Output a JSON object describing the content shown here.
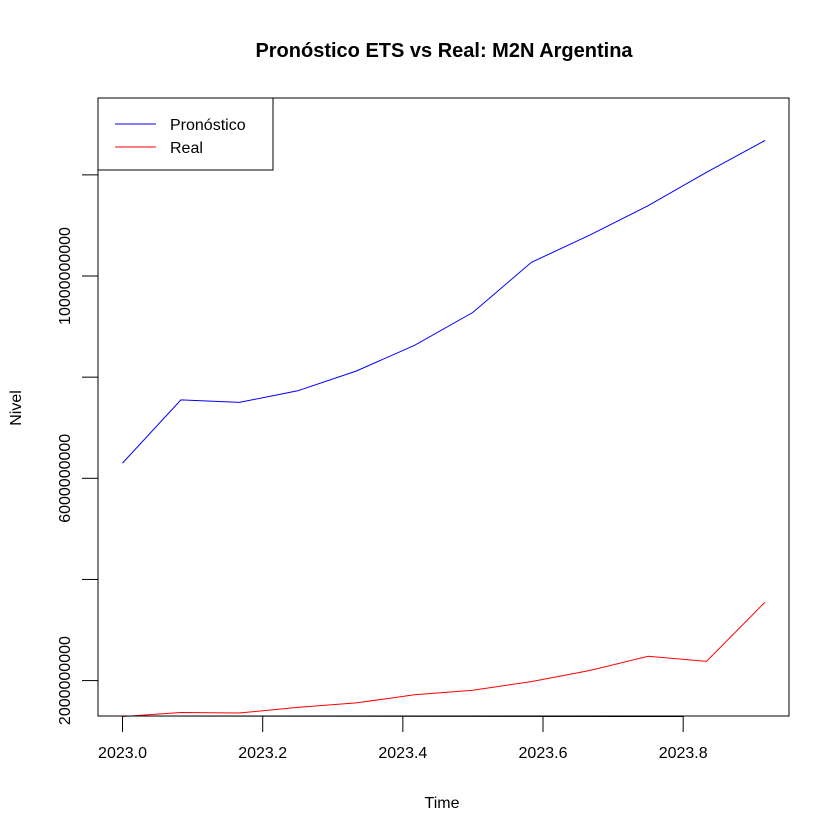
{
  "chart_data": {
    "type": "line",
    "title": "Pronóstico ETS vs Real: M2N Argentina",
    "xlabel": "Time",
    "ylabel": "Nivel",
    "xlim": [
      2022.965,
      2023.951
    ],
    "ylim": [
      1300000000,
      13520000000
    ],
    "x_ticks": [
      2023.0,
      2023.2,
      2023.4,
      2023.6,
      2023.8
    ],
    "x_tick_labels": [
      "2023.0",
      "2023.2",
      "2023.4",
      "2023.6",
      "2023.8"
    ],
    "y_ticks": [
      2000000000,
      4000000000,
      6000000000,
      8000000000,
      10000000000,
      12000000000
    ],
    "y_tick_labels": [
      "2000000000",
      "",
      "6000000000",
      "",
      "10000000000",
      ""
    ],
    "x": [
      2023.0,
      2023.0833,
      2023.1667,
      2023.25,
      2023.3333,
      2023.4167,
      2023.5,
      2023.5833,
      2023.6667,
      2023.75,
      2023.8333,
      2023.9167
    ],
    "series": [
      {
        "name": "Pronóstico",
        "color": "#0000ff",
        "values": [
          6300000000,
          7550000000,
          7500000000,
          7730000000,
          8120000000,
          8630000000,
          9280000000,
          10270000000,
          10810000000,
          11390000000,
          12050000000,
          12680000000
        ]
      },
      {
        "name": "Real",
        "color": "#ff0000",
        "values": [
          1290000000,
          1370000000,
          1360000000,
          1470000000,
          1560000000,
          1720000000,
          1810000000,
          1980000000,
          2200000000,
          2480000000,
          2380000000,
          3550000000
        ]
      }
    ],
    "legend": {
      "position": "top-left"
    },
    "grid": false
  }
}
